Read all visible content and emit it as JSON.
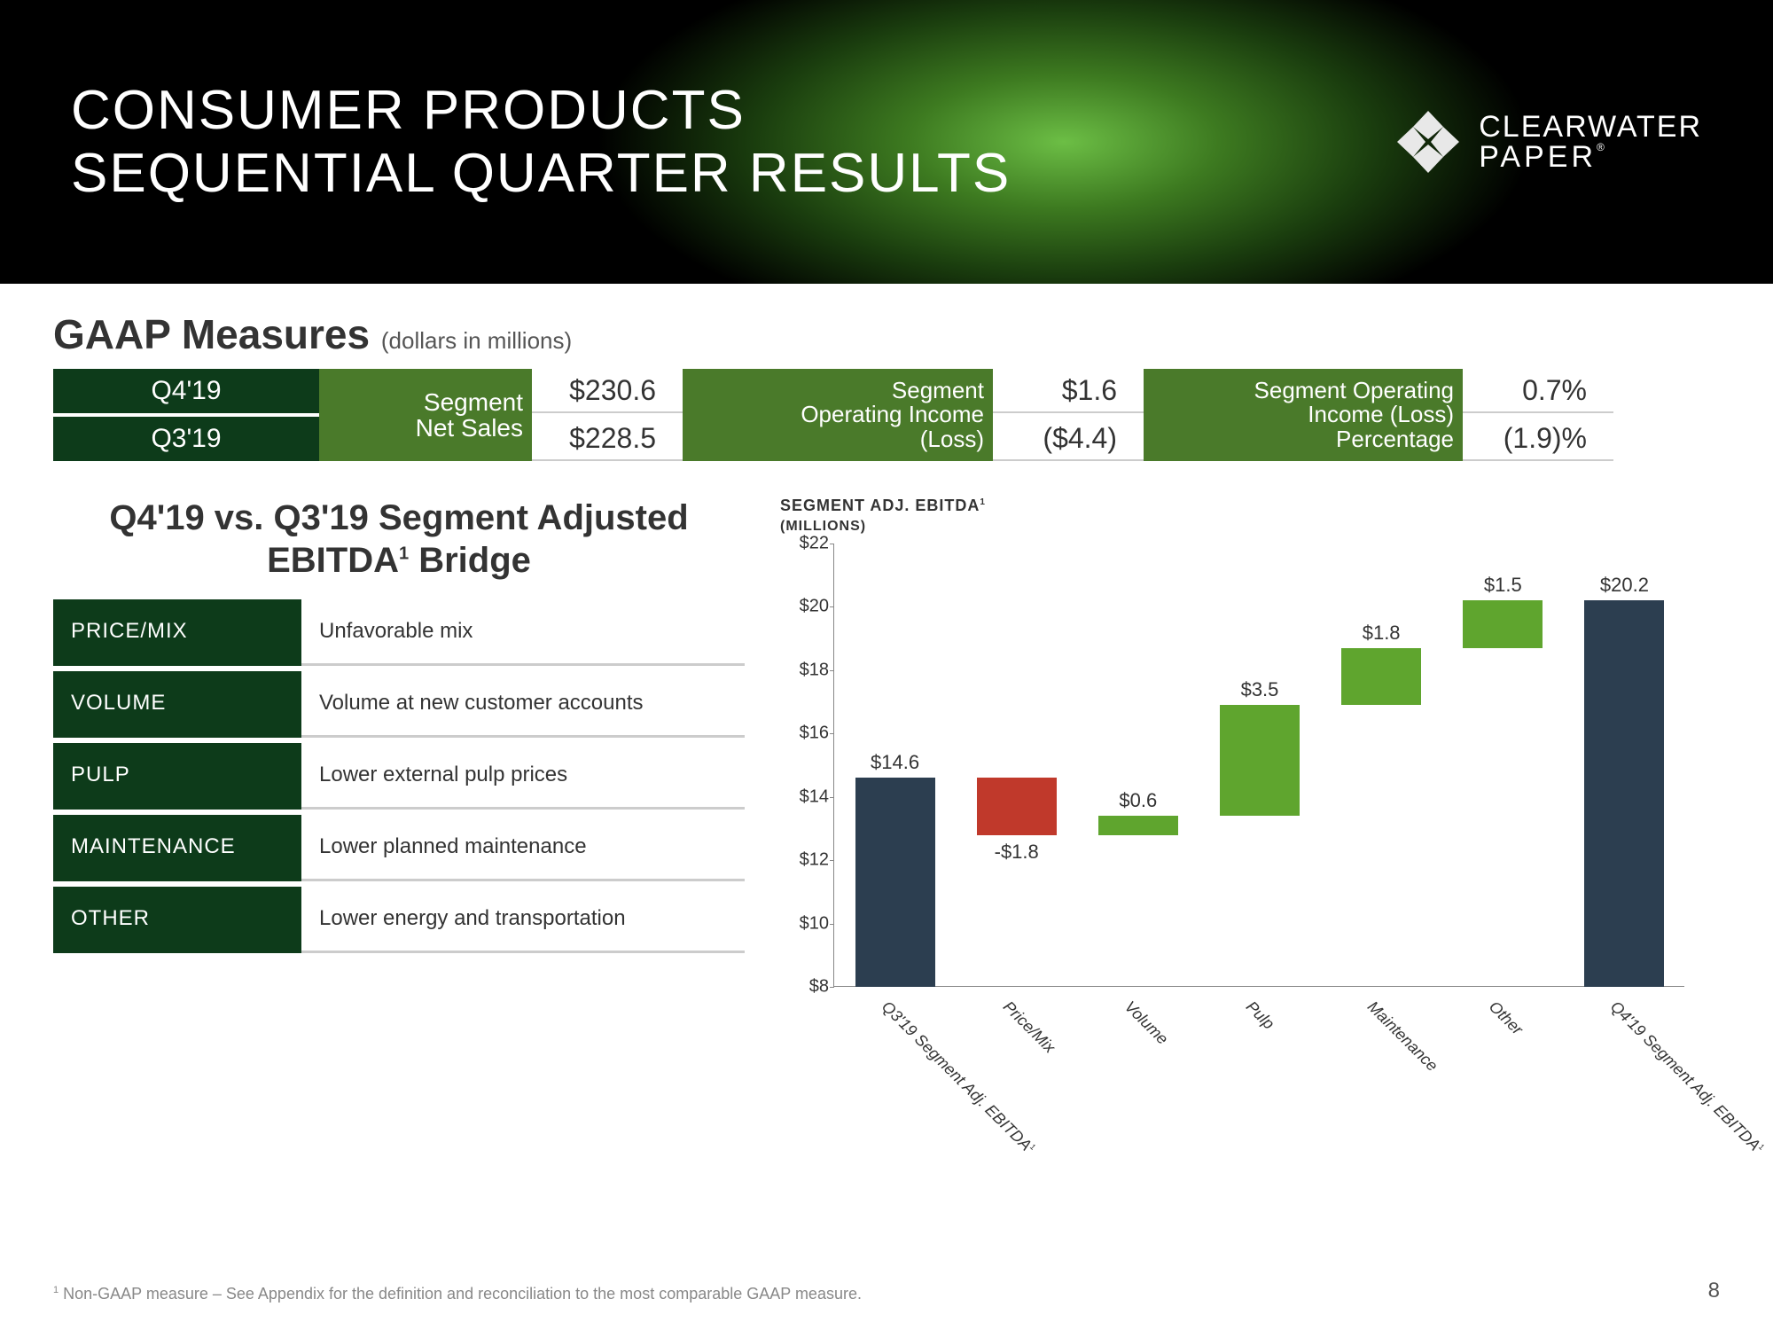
{
  "banner": {
    "title_line1": "CONSUMER PRODUCTS",
    "title_line2": "SEQUENTIAL QUARTER RESULTS",
    "logo_line1": "CLEARWATER",
    "logo_line2": "PAPER",
    "logo_fill": "#e8e8e8"
  },
  "gaap": {
    "heading": "GAAP Measures",
    "heading_sub": "(dollars in millions)",
    "period_bg": "#0d3b1a",
    "label_bg": "#4a7a2a",
    "periods": [
      "Q4'19",
      "Q3'19"
    ],
    "metrics": [
      {
        "label_lines": [
          "Segment",
          "Net Sales"
        ],
        "values": [
          "$230.6",
          "$228.5"
        ]
      },
      {
        "label_lines": [
          "Segment",
          "Operating Income",
          "(Loss)"
        ],
        "values": [
          "$1.6",
          "($4.4)"
        ]
      },
      {
        "label_lines": [
          "Segment Operating",
          "Income (Loss)",
          "Percentage"
        ],
        "values": [
          "0.7%",
          "(1.9)%"
        ]
      }
    ]
  },
  "bridge": {
    "title_line1": "Q4'19 vs. Q3'19 Segment Adjusted",
    "title_line2_pre": "EBITDA",
    "title_line2_sup": "1",
    "title_line2_post": " Bridge",
    "rows": [
      {
        "label": "PRICE/MIX",
        "desc": "Unfavorable mix"
      },
      {
        "label": "VOLUME",
        "desc": "Volume at new customer accounts"
      },
      {
        "label": "PULP",
        "desc": "Lower external pulp prices"
      },
      {
        "label": "MAINTENANCE",
        "desc": "Lower planned maintenance"
      },
      {
        "label": "OTHER",
        "desc": "Lower energy and transportation"
      }
    ]
  },
  "chart": {
    "caption": "SEGMENT ADJ. EBITDA",
    "caption_sup": "1",
    "subcaption": "(MILLIONS)",
    "ymin": 8,
    "ymax": 22,
    "ytick_step": 2,
    "yticks": [
      "$8",
      "$10",
      "$12",
      "$14",
      "$16",
      "$18",
      "$20",
      "$22"
    ],
    "colors": {
      "anchor": "#2c3e50",
      "positive": "#5fa52e",
      "negative": "#c0392b"
    },
    "bars": [
      {
        "name": "Q3'19 Segment Adj. EBITDA",
        "short_sup": "1",
        "label": "$14.6",
        "start": 8.0,
        "end": 14.6,
        "type": "anchor",
        "label_pos": "above"
      },
      {
        "name": "Price/Mix",
        "label": "-$1.8",
        "start": 14.6,
        "end": 12.8,
        "type": "negative",
        "label_pos": "below"
      },
      {
        "name": "Volume",
        "label": "$0.6",
        "start": 12.8,
        "end": 13.4,
        "type": "positive",
        "label_pos": "above"
      },
      {
        "name": "Pulp",
        "label": "$3.5",
        "start": 13.4,
        "end": 16.9,
        "type": "positive",
        "label_pos": "above"
      },
      {
        "name": "Maintenance",
        "label": "$1.8",
        "start": 16.9,
        "end": 18.7,
        "type": "positive",
        "label_pos": "above"
      },
      {
        "name": "Other",
        "label": "$1.5",
        "start": 18.7,
        "end": 20.2,
        "type": "positive",
        "label_pos": "above"
      },
      {
        "name": "Q4'19 Segment Adj. EBITDA",
        "short_sup": "1",
        "label": "$20.2",
        "start": 8.0,
        "end": 20.2,
        "type": "anchor",
        "label_pos": "above"
      }
    ]
  },
  "footnote": {
    "sup": "1",
    "text": " Non-GAAP measure – See Appendix for the definition and reconciliation to the most comparable GAAP measure."
  },
  "page_number": "8"
}
